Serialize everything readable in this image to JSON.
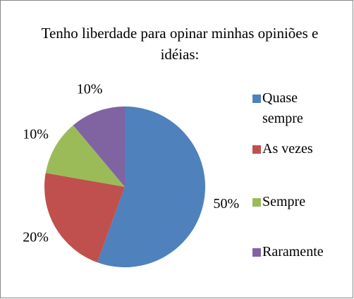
{
  "chart_data": {
    "type": "pie",
    "title": "Tenho liberdade para opinar minhas opiniões e idéias:",
    "categories": [
      "Quase sempre",
      "As vezes",
      "Sempre",
      "Raramente"
    ],
    "values": [
      50,
      20,
      10,
      10
    ],
    "value_labels": [
      "50%",
      "20%",
      "10%",
      "10%"
    ],
    "colors": [
      "#4f81bd",
      "#c0504d",
      "#9bbb59",
      "#8064a2"
    ],
    "legend": "right"
  }
}
